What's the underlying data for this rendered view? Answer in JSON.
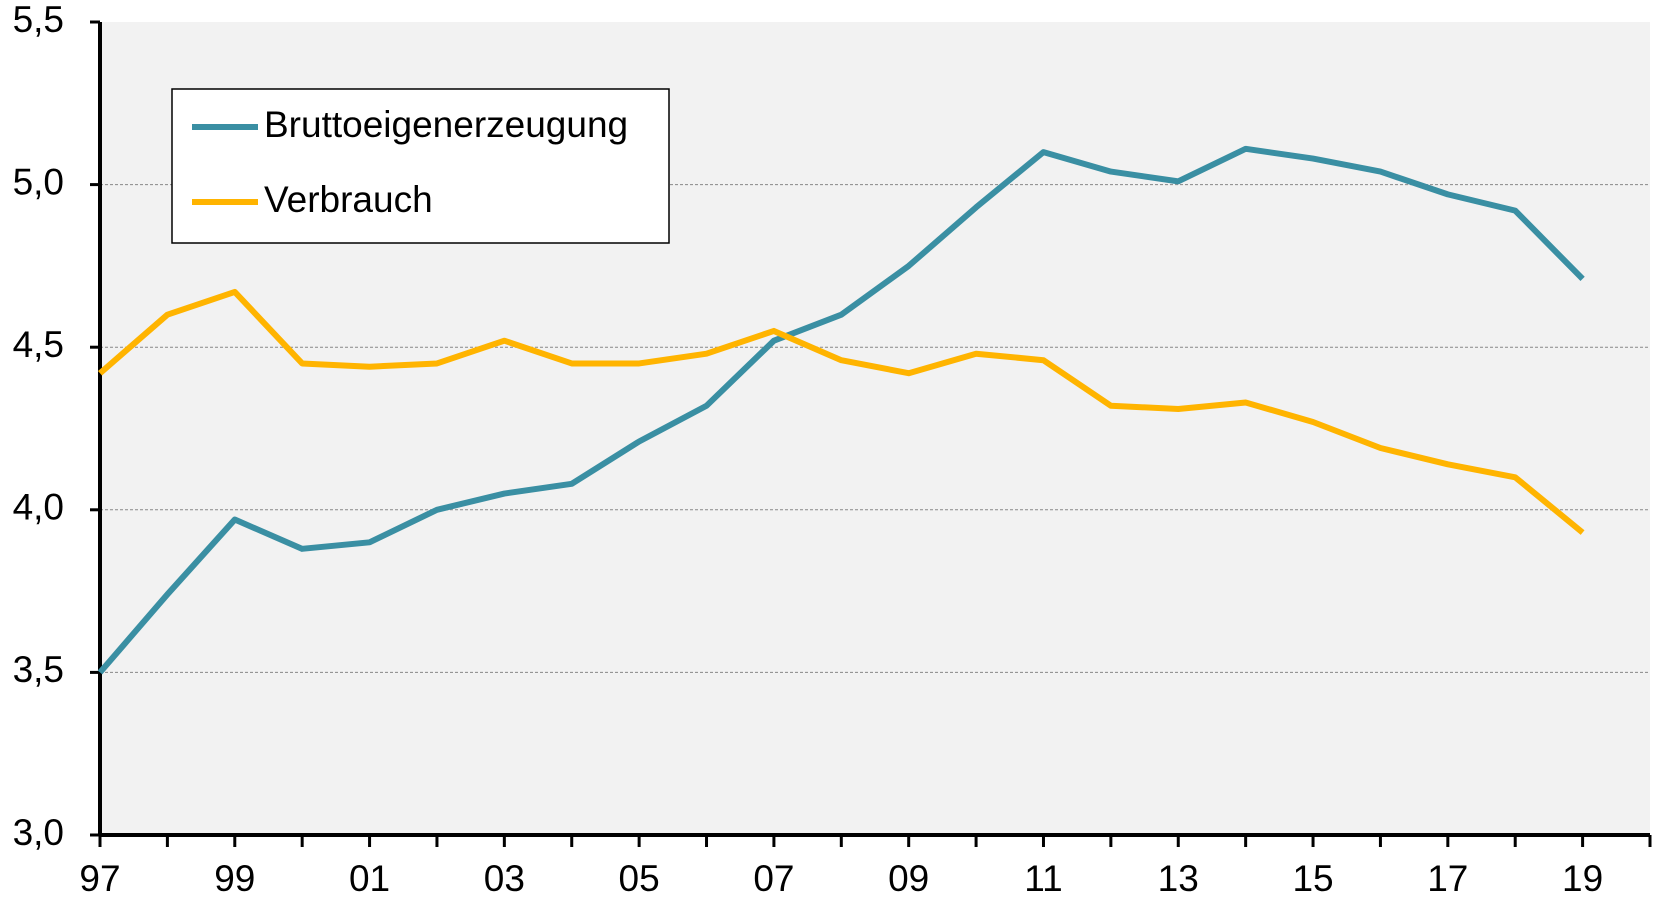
{
  "chart_data": {
    "type": "line",
    "categories": [
      "97",
      null,
      "99",
      null,
      "01",
      null,
      "03",
      null,
      "05",
      null,
      "07",
      null,
      "09",
      null,
      "11",
      null,
      "13",
      null,
      "15",
      null,
      "17",
      null,
      "19"
    ],
    "series": [
      {
        "name": "Bruttoeigenerzeugung",
        "color": "#3a8fa3",
        "values": [
          3.5,
          3.74,
          3.97,
          3.88,
          3.9,
          4.0,
          4.05,
          4.08,
          4.21,
          4.32,
          4.52,
          4.6,
          4.75,
          4.93,
          5.1,
          5.04,
          5.01,
          5.11,
          5.08,
          5.04,
          4.97,
          4.92,
          4.71
        ]
      },
      {
        "name": "Verbrauch",
        "color": "#ffb400",
        "values": [
          4.42,
          4.6,
          4.67,
          4.45,
          4.44,
          4.45,
          4.52,
          4.45,
          4.45,
          4.48,
          4.55,
          4.46,
          4.42,
          4.48,
          4.46,
          4.32,
          4.31,
          4.33,
          4.27,
          4.19,
          4.14,
          4.1,
          3.93
        ]
      }
    ],
    "ylim": [
      3.0,
      5.5
    ],
    "yticks": [
      {
        "value": 3.0,
        "label": "3,0"
      },
      {
        "value": 3.5,
        "label": "3,5"
      },
      {
        "value": 4.0,
        "label": "4,0"
      },
      {
        "value": 4.5,
        "label": "4,5"
      },
      {
        "value": 5.0,
        "label": "5,0"
      },
      {
        "value": 5.5,
        "label": "5,5"
      }
    ],
    "grid": true,
    "legend": "upper left"
  }
}
